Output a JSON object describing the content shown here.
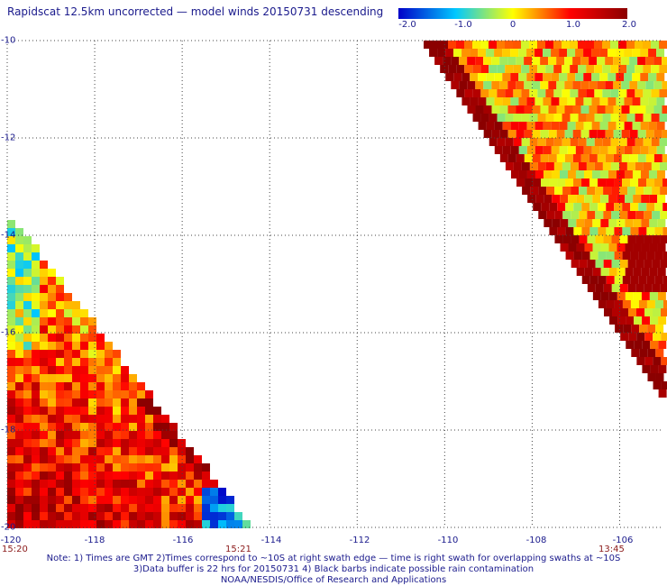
{
  "title": "Rapidscat 12.5km uncorrected — model winds 20150731 descending",
  "colorbar": {
    "labels": [
      "-2.0",
      "-1.0",
      "0",
      "1.0",
      "2.0"
    ],
    "values": [
      -2.0,
      -1.0,
      0,
      1.0,
      2.0
    ],
    "colors": [
      "#0000c8",
      "#00c8ff",
      "#ffff00",
      "#ff0000",
      "#8b0000"
    ]
  },
  "axes": {
    "lat_labels": [
      "-10",
      "-12",
      "-14",
      "-16",
      "-18",
      "-20"
    ],
    "lat_values": [
      -10,
      -12,
      -14,
      -16,
      -18,
      -20
    ],
    "lon_labels": [
      "-120",
      "-118",
      "-116",
      "-114",
      "-112",
      "-110",
      "-108",
      "-106"
    ],
    "lon_values": [
      -120,
      -118,
      -116,
      -114,
      -112,
      -110,
      -108,
      -106
    ],
    "lon_range": [
      -120,
      -105
    ],
    "lat_range": [
      -20,
      -10
    ],
    "grid": "dotted"
  },
  "times": {
    "left_start": "15:20",
    "left_end": "15:21",
    "right_end": "13:45"
  },
  "notes": [
    "Note: 1) Times are GMT 2)Times correspond to ~10S at right swath edge — time is right swath for overlapping swaths at ~10S",
    "3)Data buffer is 22 hrs for 20150731 4) Black barbs indicate possible rain contamination",
    "NOAA/NESDIS/Office of Research and Applications"
  ]
}
